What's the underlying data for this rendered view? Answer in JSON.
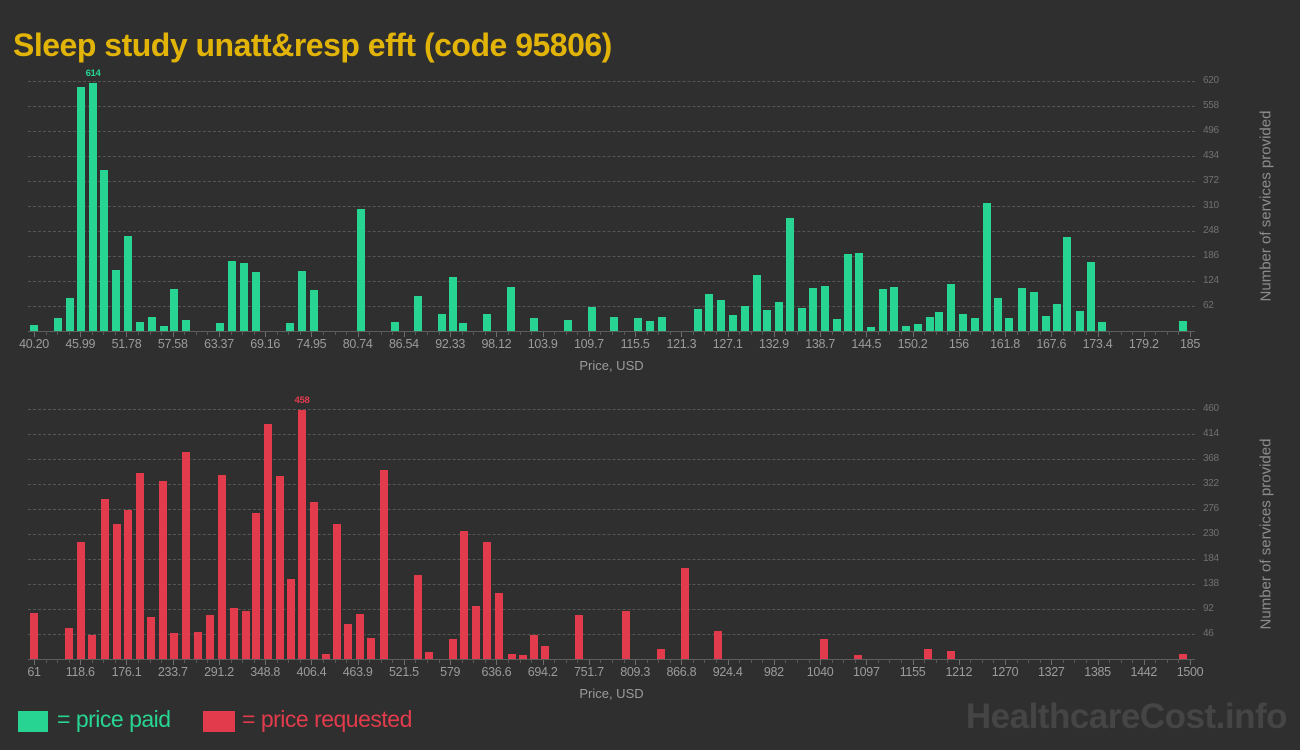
{
  "title": "Sleep study unatt&resp efft (code 95806)",
  "watermark": "HealthcareCost.info",
  "legend": {
    "paid_label": "= price paid",
    "requested_label": "= price requested"
  },
  "colors": {
    "background": "#2f2f2f",
    "title": "#e3b408",
    "paid": "#27d492",
    "requested": "#e13b4c",
    "grid": "#565656",
    "baseline": "#5e5e5e",
    "tick": "#6d6d6d",
    "x_tick_text": "#9b9b9b",
    "y_tick_text": "#717171",
    "axis_title_text": "#9b9b9b",
    "y_axis_title_text": "#8c8c8c",
    "watermark": "#454545"
  },
  "chart_data": [
    {
      "type": "bar",
      "name": "price paid",
      "xlabel": "Price, USD",
      "ylabel": "Number of services provided",
      "color": "#27d492",
      "grid": true,
      "y_axis_side": "right",
      "x_range": [
        40.2,
        185
      ],
      "x_tick_labels": [
        "40.20",
        "45.99",
        "51.78",
        "57.58",
        "63.37",
        "69.16",
        "74.95",
        "80.74",
        "86.54",
        "92.33",
        "98.12",
        "103.9",
        "109.7",
        "115.5",
        "121.3",
        "127.1",
        "132.9",
        "138.7",
        "144.5",
        "150.2",
        "156",
        "161.8",
        "167.6",
        "173.4",
        "179.2",
        "185"
      ],
      "y_tick_values": [
        62,
        124,
        186,
        248,
        310,
        372,
        434,
        496,
        558,
        620
      ],
      "y_range": [
        0,
        632
      ],
      "max_annotation": {
        "label": "614",
        "price": 47.6,
        "value": 614
      },
      "points": [
        [
          40.2,
          15
        ],
        [
          43.2,
          32
        ],
        [
          44.7,
          82
        ],
        [
          46.1,
          605
        ],
        [
          47.6,
          614
        ],
        [
          49.0,
          400
        ],
        [
          50.5,
          151
        ],
        [
          52.0,
          236
        ],
        [
          53.5,
          22
        ],
        [
          55.0,
          35
        ],
        [
          56.5,
          12
        ],
        [
          57.7,
          104
        ],
        [
          59.2,
          27
        ],
        [
          63.5,
          20
        ],
        [
          65.0,
          173
        ],
        [
          66.5,
          168
        ],
        [
          68.0,
          147
        ],
        [
          72.3,
          21
        ],
        [
          73.8,
          149
        ],
        [
          75.3,
          102
        ],
        [
          81.2,
          303
        ],
        [
          85.4,
          23
        ],
        [
          88.3,
          87
        ],
        [
          91.3,
          43
        ],
        [
          92.7,
          135
        ],
        [
          93.9,
          19
        ],
        [
          96.9,
          42
        ],
        [
          100.0,
          109
        ],
        [
          102.8,
          32
        ],
        [
          107.1,
          27
        ],
        [
          110.1,
          60
        ],
        [
          112.9,
          35
        ],
        [
          115.9,
          32
        ],
        [
          117.4,
          25
        ],
        [
          118.9,
          35
        ],
        [
          123.4,
          55
        ],
        [
          124.8,
          91
        ],
        [
          126.3,
          77
        ],
        [
          127.8,
          40
        ],
        [
          129.2,
          62
        ],
        [
          130.7,
          138
        ],
        [
          132.0,
          53
        ],
        [
          133.5,
          72
        ],
        [
          134.9,
          281
        ],
        [
          136.4,
          56
        ],
        [
          137.8,
          107
        ],
        [
          139.3,
          112
        ],
        [
          140.8,
          30
        ],
        [
          142.2,
          191
        ],
        [
          143.5,
          194
        ],
        [
          145.0,
          11
        ],
        [
          146.6,
          104
        ],
        [
          147.9,
          109
        ],
        [
          149.4,
          12
        ],
        [
          150.9,
          17
        ],
        [
          152.4,
          35
        ],
        [
          153.6,
          47
        ],
        [
          155.1,
          117
        ],
        [
          156.6,
          42
        ],
        [
          158.1,
          32
        ],
        [
          159.6,
          318
        ],
        [
          161.0,
          82
        ],
        [
          162.3,
          32
        ],
        [
          163.9,
          107
        ],
        [
          165.4,
          97
        ],
        [
          166.9,
          37
        ],
        [
          168.4,
          67
        ],
        [
          169.6,
          233
        ],
        [
          171.2,
          50
        ],
        [
          172.6,
          171
        ],
        [
          174.0,
          22
        ],
        [
          184.1,
          25
        ]
      ]
    },
    {
      "type": "bar",
      "name": "price requested",
      "xlabel": "Price, USD",
      "ylabel": "Number of services provided",
      "color": "#e13b4c",
      "grid": true,
      "y_axis_side": "right",
      "x_range": [
        61,
        1500
      ],
      "x_tick_labels": [
        "61",
        "118.6",
        "176.1",
        "233.7",
        "291.2",
        "348.8",
        "406.4",
        "463.9",
        "521.5",
        "579",
        "636.6",
        "694.2",
        "751.7",
        "809.3",
        "866.8",
        "924.4",
        "982",
        "1040",
        "1097",
        "1155",
        "1212",
        "1270",
        "1327",
        "1385",
        "1442",
        "1500"
      ],
      "y_tick_values": [
        46,
        92,
        138,
        184,
        230,
        276,
        322,
        368,
        414,
        460
      ],
      "y_range": [
        0,
        470
      ],
      "max_annotation": {
        "label": "458",
        "price": 394.6,
        "value": 458
      },
      "points": [
        [
          61,
          85
        ],
        [
          104.6,
          57
        ],
        [
          119.5,
          215
        ],
        [
          133.2,
          44
        ],
        [
          149.4,
          294
        ],
        [
          164.3,
          248
        ],
        [
          178.0,
          275
        ],
        [
          192.9,
          342
        ],
        [
          206.6,
          78
        ],
        [
          221.6,
          328
        ],
        [
          235.3,
          47
        ],
        [
          250.2,
          380
        ],
        [
          265.1,
          50
        ],
        [
          280.1,
          81
        ],
        [
          295.0,
          338
        ],
        [
          309.9,
          94
        ],
        [
          324.9,
          88
        ],
        [
          337.3,
          269
        ],
        [
          352.3,
          432
        ],
        [
          367.2,
          336
        ],
        [
          380.9,
          148
        ],
        [
          394.6,
          458
        ],
        [
          409.5,
          288
        ],
        [
          424.5,
          10
        ],
        [
          438.2,
          248
        ],
        [
          451.9,
          65
        ],
        [
          466.8,
          83
        ],
        [
          480.5,
          39
        ],
        [
          496.7,
          348
        ],
        [
          539.0,
          154
        ],
        [
          552.7,
          12
        ],
        [
          582.6,
          37
        ],
        [
          596.3,
          235
        ],
        [
          611.2,
          98
        ],
        [
          624.9,
          216
        ],
        [
          639.8,
          122
        ],
        [
          656.0,
          9
        ],
        [
          669.7,
          8
        ],
        [
          683.4,
          44
        ],
        [
          697.1,
          24
        ],
        [
          739.4,
          81
        ],
        [
          797.9,
          89
        ],
        [
          841.5,
          18
        ],
        [
          871.3,
          167
        ],
        [
          912.4,
          52
        ],
        [
          1044.3,
          36
        ],
        [
          1086.7,
          8
        ],
        [
          1173.8,
          19
        ],
        [
          1202.4,
          15
        ],
        [
          1491.2,
          9
        ]
      ]
    }
  ]
}
